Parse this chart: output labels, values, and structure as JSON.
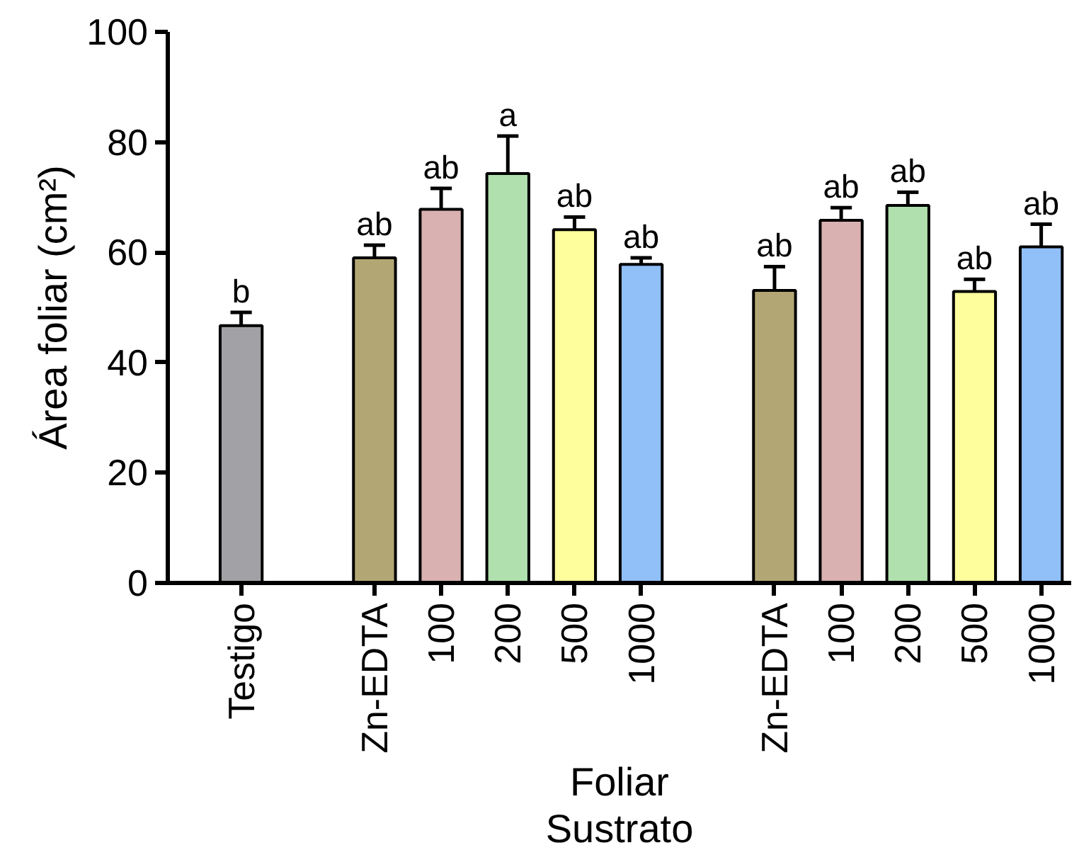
{
  "chart_data": {
    "type": "bar",
    "ylabel": "Área foliar (cm²)",
    "categories": [
      "Testigo",
      null,
      "Zn-EDTA",
      "100",
      "200",
      "500",
      "1000",
      null,
      "Zn-EDTA",
      "100",
      "200",
      "500",
      "1000"
    ],
    "values": [
      46.7,
      null,
      59.0,
      67.8,
      74.3,
      64.1,
      57.8,
      null,
      53.1,
      65.8,
      68.5,
      52.9,
      61.0
    ],
    "errors": [
      2.4,
      null,
      2.3,
      3.8,
      6.8,
      2.3,
      1.2,
      null,
      4.3,
      2.3,
      2.4,
      2.2,
      4.1
    ],
    "colors": [
      "#a2a1a6",
      null,
      "#b2a774",
      "#d8b1b0",
      "#b0e0ae",
      "#fefe9c",
      "#91bff8",
      null,
      "#b2a774",
      "#d8b1b0",
      "#b0e0ae",
      "#fefe9c",
      "#91bff8"
    ],
    "value_labels": [
      "b",
      null,
      "ab",
      "ab",
      "a",
      "ab",
      "ab",
      null,
      "ab",
      "ab",
      "ab",
      "ab",
      "ab"
    ],
    "annotations": [
      "Foliar",
      "Sustrato"
    ],
    "ylim": [
      0,
      100
    ],
    "yticks": [
      0,
      20,
      40,
      60,
      80,
      100
    ],
    "grid": false
  }
}
